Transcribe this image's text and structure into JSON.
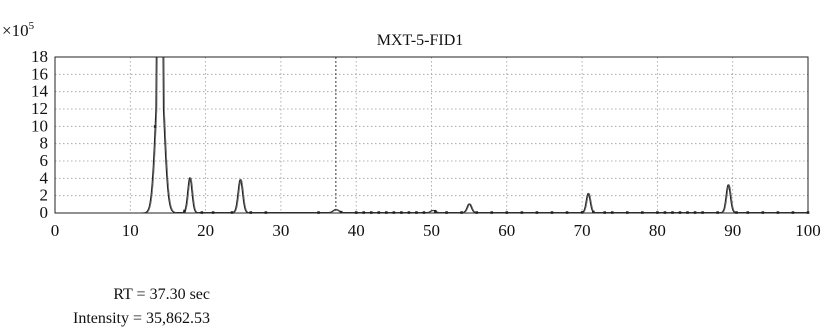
{
  "chart_data": {
    "type": "line",
    "title": "MXT-5-FID1",
    "y_multiplier_base": "×10",
    "y_multiplier_exp": "5",
    "xlim": [
      0,
      100
    ],
    "ylim": [
      0,
      18
    ],
    "x_ticks": [
      0,
      10,
      20,
      30,
      40,
      50,
      60,
      70,
      80,
      90,
      100
    ],
    "y_ticks": [
      0,
      2,
      4,
      6,
      8,
      10,
      12,
      14,
      16,
      18
    ],
    "grid": true,
    "cursor_x": 37.3,
    "peaks": [
      {
        "rt": 13.9,
        "height": 18.0,
        "width": 0.55
      },
      {
        "rt": 17.9,
        "height": 4.0,
        "width": 0.28
      },
      {
        "rt": 24.6,
        "height": 3.8,
        "width": 0.3
      },
      {
        "rt": 37.3,
        "height": 0.36,
        "width": 0.35
      },
      {
        "rt": 50.2,
        "height": 0.25,
        "width": 0.3
      },
      {
        "rt": 55.0,
        "height": 1.0,
        "width": 0.28
      },
      {
        "rt": 70.8,
        "height": 2.2,
        "width": 0.26
      },
      {
        "rt": 89.4,
        "height": 3.2,
        "width": 0.28
      }
    ]
  },
  "readout": {
    "rt": "RT = 37.30 sec",
    "intensity": "Intensity = 35,862.53"
  }
}
